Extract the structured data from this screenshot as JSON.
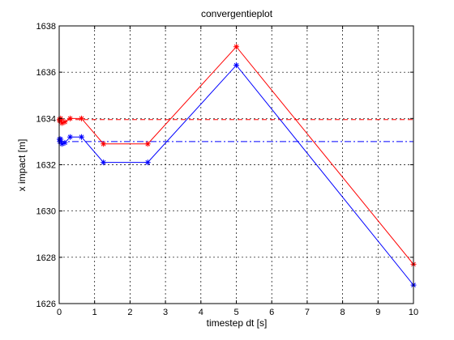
{
  "chart_data": {
    "type": "line",
    "title": "convergentieplot",
    "xlabel": "timestep dt [s]",
    "ylabel": "x impact [m]",
    "xlim": [
      0,
      10
    ],
    "ylim": [
      1626,
      1638
    ],
    "xticks": [
      "0",
      "1",
      "2",
      "3",
      "4",
      "5",
      "6",
      "7",
      "8",
      "9",
      "10"
    ],
    "yticks": [
      "1626",
      "1628",
      "1630",
      "1632",
      "1634",
      "1636",
      "1638"
    ],
    "grid": true,
    "legend": "none",
    "series": [
      {
        "color": "#ff0000",
        "marker": "asterisk",
        "line_style": "solid",
        "x": [
          0.01,
          0.02,
          0.04,
          0.08,
          0.16,
          0.31,
          0.63,
          1.25,
          2.5,
          5,
          10
        ],
        "y": [
          1633.95,
          1633.9,
          1634.0,
          1633.8,
          1633.85,
          1634.0,
          1634.0,
          1632.9,
          1632.9,
          1637.1,
          1627.7
        ]
      },
      {
        "color": "#0000ff",
        "marker": "asterisk",
        "line_style": "solid",
        "x": [
          0.01,
          0.02,
          0.04,
          0.08,
          0.16,
          0.31,
          0.63,
          1.25,
          2.5,
          5,
          10
        ],
        "y": [
          1633.1,
          1633.0,
          1633.1,
          1632.9,
          1632.95,
          1633.2,
          1633.2,
          1632.1,
          1632.1,
          1636.3,
          1626.8
        ]
      },
      {
        "color": "#ff0000",
        "marker": "none",
        "line_style": "dashed",
        "x": [
          0,
          10
        ],
        "y": [
          1633.95,
          1633.95
        ]
      },
      {
        "color": "#0000ff",
        "marker": "none",
        "line_style": "dash-dot",
        "x": [
          0,
          10
        ],
        "y": [
          1633.0,
          1633.0
        ]
      }
    ]
  }
}
